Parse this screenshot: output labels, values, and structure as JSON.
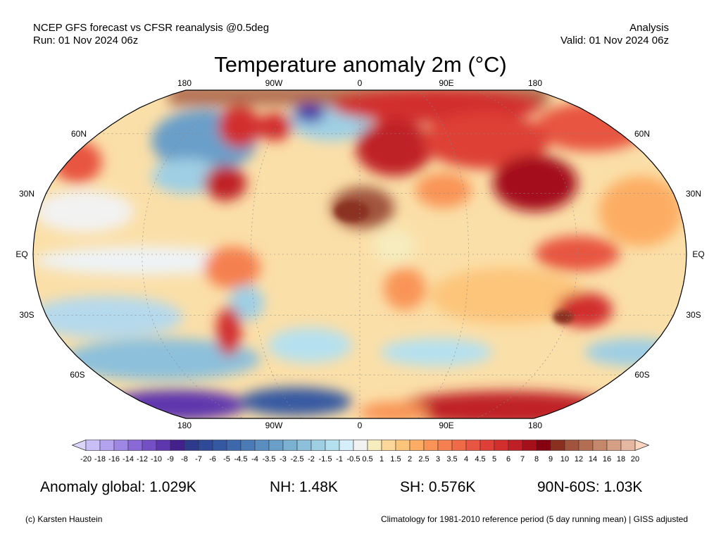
{
  "header": {
    "left_line1": "NCEP GFS forecast vs CFSR reanalysis @0.5deg",
    "left_line2": "Run: 01 Nov 2024 06z",
    "right_line1": "Analysis",
    "right_line2": "Valid: 01 Nov 2024 06z"
  },
  "title": "Temperature anomaly 2m (°C)",
  "map": {
    "projection": "Robinson",
    "lon_labels_top": [
      "180",
      "90W",
      "0",
      "90E",
      "180"
    ],
    "lon_labels_bottom": [
      "180",
      "90W",
      "0",
      "90E",
      "180"
    ],
    "lat_labels": [
      "60N",
      "30N",
      "EQ",
      "30S",
      "60S"
    ]
  },
  "colorbar": {
    "ticks": [
      "-20",
      "-18",
      "-16",
      "-14",
      "-12",
      "-10",
      "-9",
      "-8",
      "-7",
      "-6",
      "-5",
      "-4.5",
      "-4",
      "-3.5",
      "-3",
      "-2.5",
      "-2",
      "-1.5",
      "-1",
      "-0.5",
      "0.5",
      "1",
      "1.5",
      "2",
      "2.5",
      "3",
      "3.5",
      "4",
      "4.5",
      "5",
      "6",
      "7",
      "8",
      "9",
      "10",
      "12",
      "14",
      "16",
      "18",
      "20"
    ],
    "under_color": "#ddd6fb",
    "over_color": "#fcd5c0",
    "colors": [
      "#c9bff6",
      "#b3a3ef",
      "#9e86e3",
      "#8a69d6",
      "#7450c4",
      "#5e36ad",
      "#44208c",
      "#2e3a8c",
      "#2f4a98",
      "#3558a2",
      "#3d68ac",
      "#4a7bb7",
      "#5a8dc0",
      "#6a9fc9",
      "#7bb1d3",
      "#8cc0db",
      "#9fcfe4",
      "#b5e0ef",
      "#d5eefa",
      "#f2f2f2",
      "#f6ecbe",
      "#fbd899",
      "#fcc57a",
      "#fcad63",
      "#f99456",
      "#f5804f",
      "#ef6a47",
      "#e85540",
      "#de3f36",
      "#d22e2e",
      "#bf2026",
      "#a4111b",
      "#850010",
      "#8b3020",
      "#a0553c",
      "#b46f52",
      "#c4876a",
      "#d5a085",
      "#e6b7a0"
    ]
  },
  "stats": {
    "global": "Anomaly global: 1.029K",
    "nh": "NH: 1.48K",
    "sh": "SH: 0.576K",
    "band": "90N-60S: 1.03K"
  },
  "footer": {
    "credit": "(c) Karsten Haustein",
    "note": "Climatology for 1981-2010 reference period (5 day running mean) | GISS adjusted"
  }
}
